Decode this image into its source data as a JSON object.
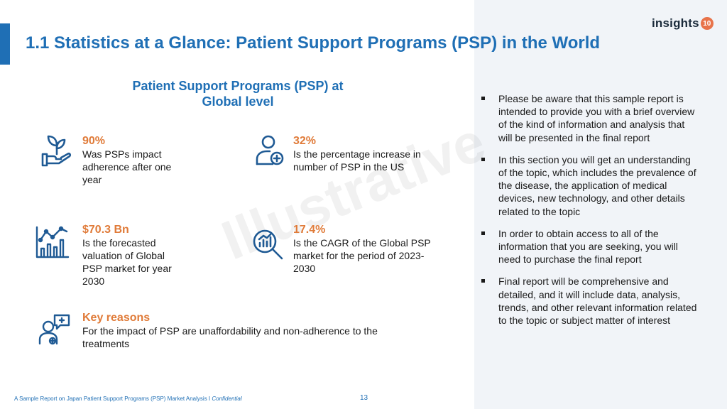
{
  "slide": {
    "title": "1.1 Statistics at a Glance: Patient Support Programs (PSP) in the World",
    "logo": {
      "text": "insights",
      "badge": "10"
    },
    "section_heading": "Patient Support Programs (PSP) at Global level",
    "watermark": "Illustrative"
  },
  "stats": [
    {
      "value": "90%",
      "description": "Was PSPs impact adherence after one year",
      "icon": "hands-plant-icon"
    },
    {
      "value": "32%",
      "description": "Is the percentage increase in number of PSP in the US",
      "icon": "patient-icon"
    },
    {
      "value": "$70.3 Bn",
      "description": "Is the forecasted valuation of Global PSP market for year 2030",
      "icon": "growth-chart-icon"
    },
    {
      "value": "17.4%",
      "description": "Is the CAGR of the Global PSP market for the period of 2023-2030",
      "icon": "magnifier-chart-icon"
    },
    {
      "value": "Key reasons",
      "description": "For the impact of PSP are unaffordability and non-adherence to the treatments",
      "icon": "doctor-consult-icon"
    }
  ],
  "bullets": [
    "Please be aware that this sample report is intended to provide you with a brief overview of the kind of information and analysis that will be presented in the final report",
    "In this section you will get an understanding of the topic, which includes the prevalence of the disease, the application of medical devices, new technology, and other details related to the topic",
    "In order to obtain access to all of the information that you are seeking, you will need to purchase the final report",
    "Final report will be comprehensive and detailed, and it will include data, analysis, trends, and other relevant information related to the topic or subject matter of interest"
  ],
  "footer": {
    "text": "A Sample Report on Japan Patient Support Programs (PSP) Market Analysis I",
    "confidential": "Confidential",
    "page_number": "13"
  },
  "colors": {
    "primary": "#1f6fb5",
    "accent": "#e07b39",
    "panel": "#f1f4f8"
  }
}
